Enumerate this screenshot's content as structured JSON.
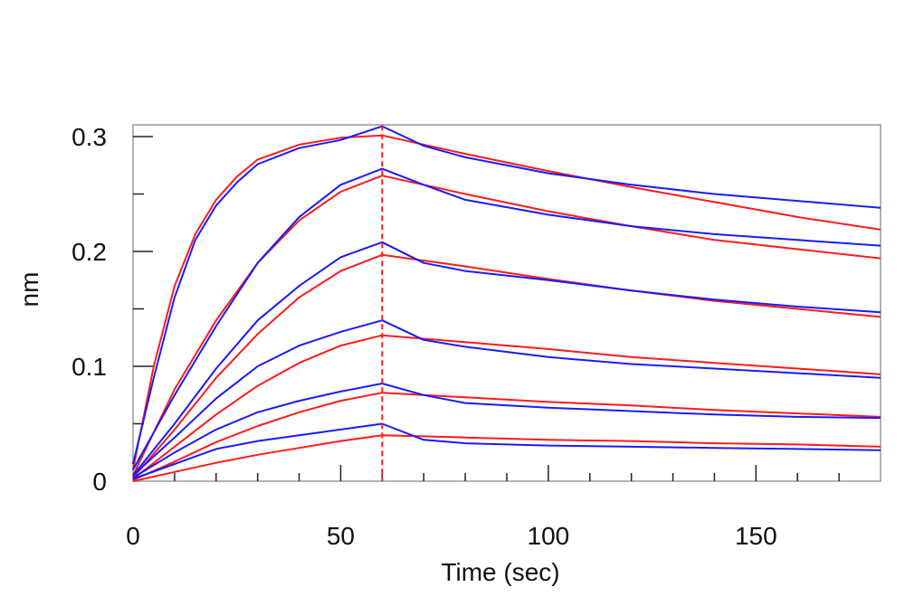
{
  "chart_data": {
    "type": "line",
    "title": "",
    "xlabel": "Time (sec)",
    "ylabel": "nm",
    "xlim": [
      0,
      180
    ],
    "ylim": [
      0,
      0.3
    ],
    "x_ticks": [
      0,
      50,
      100,
      150
    ],
    "x_tick_labels": [
      "0",
      "50",
      "100",
      "150"
    ],
    "y_ticks": [
      0,
      0.1,
      0.2,
      0.3
    ],
    "y_tick_labels": [
      "0",
      "0.1",
      "0.2",
      "0.3"
    ],
    "grid": false,
    "legend": "none",
    "association_end": 60,
    "colors": {
      "measured": "#1a1aff",
      "fit": "#ff1a1a",
      "marker": "#ff1a1a",
      "frame": "#999999"
    },
    "series": [
      {
        "kind": "fit",
        "points": [
          [
            0,
            0.01
          ],
          [
            5,
            0.1
          ],
          [
            10,
            0.17
          ],
          [
            15,
            0.215
          ],
          [
            20,
            0.245
          ],
          [
            25,
            0.265
          ],
          [
            30,
            0.28
          ],
          [
            40,
            0.293
          ],
          [
            50,
            0.299
          ],
          [
            60,
            0.301
          ],
          [
            80,
            0.285
          ],
          [
            100,
            0.27
          ],
          [
            120,
            0.256
          ],
          [
            140,
            0.243
          ],
          [
            160,
            0.23
          ],
          [
            180,
            0.219
          ]
        ]
      },
      {
        "kind": "measured",
        "points": [
          [
            0,
            0.015
          ],
          [
            5,
            0.09
          ],
          [
            10,
            0.16
          ],
          [
            15,
            0.21
          ],
          [
            20,
            0.24
          ],
          [
            25,
            0.26
          ],
          [
            30,
            0.276
          ],
          [
            40,
            0.29
          ],
          [
            50,
            0.297
          ],
          [
            60,
            0.309
          ],
          [
            70,
            0.292
          ],
          [
            80,
            0.282
          ],
          [
            100,
            0.268
          ],
          [
            120,
            0.258
          ],
          [
            140,
            0.25
          ],
          [
            160,
            0.244
          ],
          [
            180,
            0.238
          ]
        ]
      },
      {
        "kind": "fit",
        "points": [
          [
            0,
            0.005
          ],
          [
            10,
            0.08
          ],
          [
            20,
            0.14
          ],
          [
            30,
            0.19
          ],
          [
            40,
            0.227
          ],
          [
            50,
            0.252
          ],
          [
            60,
            0.266
          ],
          [
            80,
            0.25
          ],
          [
            100,
            0.235
          ],
          [
            120,
            0.222
          ],
          [
            140,
            0.21
          ],
          [
            160,
            0.202
          ],
          [
            180,
            0.194
          ]
        ]
      },
      {
        "kind": "measured",
        "points": [
          [
            0,
            0.01
          ],
          [
            10,
            0.075
          ],
          [
            20,
            0.135
          ],
          [
            30,
            0.19
          ],
          [
            40,
            0.23
          ],
          [
            50,
            0.258
          ],
          [
            60,
            0.272
          ],
          [
            70,
            0.258
          ],
          [
            80,
            0.245
          ],
          [
            100,
            0.232
          ],
          [
            120,
            0.222
          ],
          [
            140,
            0.215
          ],
          [
            160,
            0.21
          ],
          [
            180,
            0.205
          ]
        ]
      },
      {
        "kind": "fit",
        "points": [
          [
            0,
            0.003
          ],
          [
            10,
            0.045
          ],
          [
            20,
            0.09
          ],
          [
            30,
            0.128
          ],
          [
            40,
            0.16
          ],
          [
            50,
            0.183
          ],
          [
            60,
            0.197
          ],
          [
            80,
            0.187
          ],
          [
            100,
            0.176
          ],
          [
            120,
            0.166
          ],
          [
            140,
            0.157
          ],
          [
            160,
            0.15
          ],
          [
            180,
            0.143
          ]
        ]
      },
      {
        "kind": "measured",
        "points": [
          [
            0,
            0.005
          ],
          [
            10,
            0.05
          ],
          [
            20,
            0.098
          ],
          [
            30,
            0.14
          ],
          [
            40,
            0.17
          ],
          [
            50,
            0.195
          ],
          [
            60,
            0.208
          ],
          [
            70,
            0.19
          ],
          [
            80,
            0.183
          ],
          [
            100,
            0.175
          ],
          [
            120,
            0.166
          ],
          [
            140,
            0.158
          ],
          [
            160,
            0.152
          ],
          [
            180,
            0.147
          ]
        ]
      },
      {
        "kind": "fit",
        "points": [
          [
            0,
            0.002
          ],
          [
            10,
            0.03
          ],
          [
            20,
            0.058
          ],
          [
            30,
            0.083
          ],
          [
            40,
            0.103
          ],
          [
            50,
            0.118
          ],
          [
            60,
            0.127
          ],
          [
            80,
            0.121
          ],
          [
            100,
            0.115
          ],
          [
            120,
            0.108
          ],
          [
            140,
            0.103
          ],
          [
            160,
            0.098
          ],
          [
            180,
            0.093
          ]
        ]
      },
      {
        "kind": "measured",
        "points": [
          [
            0,
            0.005
          ],
          [
            10,
            0.038
          ],
          [
            20,
            0.072
          ],
          [
            30,
            0.1
          ],
          [
            40,
            0.118
          ],
          [
            50,
            0.13
          ],
          [
            60,
            0.14
          ],
          [
            70,
            0.123
          ],
          [
            80,
            0.117
          ],
          [
            100,
            0.108
          ],
          [
            120,
            0.102
          ],
          [
            140,
            0.098
          ],
          [
            160,
            0.094
          ],
          [
            180,
            0.09
          ]
        ]
      },
      {
        "kind": "fit",
        "points": [
          [
            0,
            0.001
          ],
          [
            10,
            0.017
          ],
          [
            20,
            0.034
          ],
          [
            30,
            0.048
          ],
          [
            40,
            0.06
          ],
          [
            50,
            0.07
          ],
          [
            60,
            0.077
          ],
          [
            80,
            0.073
          ],
          [
            100,
            0.069
          ],
          [
            120,
            0.066
          ],
          [
            140,
            0.062
          ],
          [
            160,
            0.059
          ],
          [
            180,
            0.056
          ]
        ]
      },
      {
        "kind": "measured",
        "points": [
          [
            0,
            0.003
          ],
          [
            10,
            0.025
          ],
          [
            20,
            0.045
          ],
          [
            30,
            0.06
          ],
          [
            40,
            0.07
          ],
          [
            50,
            0.078
          ],
          [
            60,
            0.085
          ],
          [
            70,
            0.075
          ],
          [
            80,
            0.068
          ],
          [
            100,
            0.064
          ],
          [
            120,
            0.061
          ],
          [
            140,
            0.058
          ],
          [
            160,
            0.056
          ],
          [
            180,
            0.055
          ]
        ]
      },
      {
        "kind": "fit",
        "points": [
          [
            0,
            0.0
          ],
          [
            10,
            0.008
          ],
          [
            20,
            0.016
          ],
          [
            30,
            0.023
          ],
          [
            40,
            0.029
          ],
          [
            50,
            0.035
          ],
          [
            60,
            0.04
          ],
          [
            80,
            0.038
          ],
          [
            100,
            0.036
          ],
          [
            120,
            0.035
          ],
          [
            140,
            0.033
          ],
          [
            160,
            0.032
          ],
          [
            180,
            0.03
          ]
        ]
      },
      {
        "kind": "measured",
        "points": [
          [
            0,
            0.002
          ],
          [
            10,
            0.015
          ],
          [
            20,
            0.028
          ],
          [
            30,
            0.035
          ],
          [
            40,
            0.04
          ],
          [
            50,
            0.045
          ],
          [
            60,
            0.05
          ],
          [
            70,
            0.036
          ],
          [
            80,
            0.033
          ],
          [
            100,
            0.031
          ],
          [
            120,
            0.03
          ],
          [
            140,
            0.029
          ],
          [
            160,
            0.028
          ],
          [
            180,
            0.027
          ]
        ]
      }
    ]
  }
}
